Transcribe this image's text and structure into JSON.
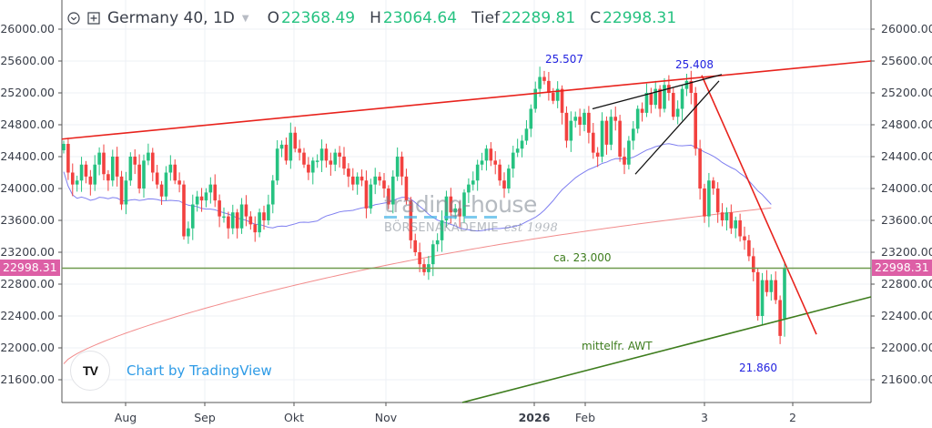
{
  "header": {
    "symbol": "Germany 40, 1D",
    "ohlc": [
      {
        "key": "O",
        "value": "22368.49"
      },
      {
        "key": "H",
        "value": "23064.64"
      },
      {
        "key": "Tief",
        "value": "22289.81"
      },
      {
        "key": "C",
        "value": "22998.31"
      }
    ]
  },
  "current_price_label": "22998.31",
  "watermark": {
    "line1": "trading-house",
    "line2": "BÖRSENAKADEMIE",
    "line3": "est 1998"
  },
  "attribution": {
    "logo": "TV",
    "text": "Chart by TradingView"
  },
  "annotations": {
    "high1": "25.507",
    "high2": "25.408",
    "level": "ca. 23.000",
    "trend": "mittelfr. AWT",
    "low": "21.860"
  },
  "colors": {
    "up": "#26c281",
    "down": "#f2413f",
    "ma50": "#7f7ff0",
    "ma200": "#f28c8c",
    "price_tag": "#dd5fa6",
    "resistance": "#e8231d",
    "support": "#3e7d1e",
    "wedge": "#111111"
  },
  "chart_data": {
    "type": "candlestick",
    "title": "Germany 40, 1D",
    "xlabel": "",
    "ylabel": "",
    "ylim": [
      21400,
      26300
    ],
    "y_ticks": [
      "26000.00",
      "25600.00",
      "25200.00",
      "24800.00",
      "24400.00",
      "24000.00",
      "23600.00",
      "23200.00",
      "22800.00",
      "22400.00",
      "22000.00",
      "21600.00"
    ],
    "x_ticks": [
      {
        "label": "Aug",
        "x": 138
      },
      {
        "label": "Sep",
        "x": 225
      },
      {
        "label": "Okt",
        "x": 323
      },
      {
        "label": "Nov",
        "x": 424
      },
      {
        "label": "2026",
        "x": 587,
        "bold": true
      },
      {
        "label": "Feb",
        "x": 643
      },
      {
        "label": "3",
        "x": 774
      },
      {
        "label": "2",
        "x": 871
      }
    ],
    "last": {
      "open": 22368.49,
      "high": 23064.64,
      "low": 22289.81,
      "close": 22998.31
    },
    "closes": [
      24560,
      24200,
      24050,
      24100,
      24300,
      24150,
      24050,
      24300,
      24450,
      24180,
      24100,
      24400,
      24150,
      23800,
      24100,
      24400,
      24300,
      24000,
      24350,
      24450,
      24200,
      24050,
      23900,
      24200,
      24300,
      24100,
      24050,
      23400,
      23500,
      23800,
      23900,
      23850,
      23950,
      24050,
      23850,
      23650,
      23650,
      23500,
      23700,
      23500,
      23800,
      23650,
      23550,
      23450,
      23700,
      23600,
      23800,
      24100,
      24500,
      24550,
      24350,
      24700,
      24500,
      24450,
      24300,
      24200,
      24350,
      24350,
      24500,
      24350,
      24300,
      24450,
      24400,
      24250,
      24150,
      24050,
      24150,
      24100,
      23750,
      24050,
      24150,
      24100,
      24000,
      23800,
      24150,
      24400,
      24150,
      23850,
      23350,
      23200,
      23050,
      22950,
      23050,
      23300,
      23350,
      23600,
      23900,
      23700,
      23750,
      23650,
      23950,
      24050,
      24100,
      24300,
      24350,
      24500,
      24350,
      24300,
      24100,
      24000,
      24250,
      24450,
      24500,
      24600,
      24750,
      25000,
      25250,
      25400,
      25350,
      25200,
      25100,
      25250,
      24950,
      24600,
      24850,
      24900,
      24800,
      24950,
      24700,
      24450,
      24400,
      24850,
      24550,
      24900,
      24850,
      24400,
      24300,
      24600,
      24750,
      25000,
      24950,
      25200,
      25050,
      25250,
      25000,
      25300,
      25200,
      24900,
      25000,
      25250,
      25350,
      25200,
      24500,
      24000,
      23650,
      24100,
      24000,
      23700,
      23600,
      23700,
      23500,
      23600,
      23400,
      23350,
      23150,
      22950,
      22400,
      22850,
      22700,
      22850,
      22600,
      22150,
      22998
    ],
    "ma50_endpoints": [
      23580,
      23840
    ],
    "ma200_endpoints": [
      21800,
      23740
    ],
    "lines": [
      {
        "name": "resistance",
        "from": [
          0,
          24620
        ],
        "to": [
          200,
          25630
        ]
      },
      {
        "name": "support AWT",
        "from": [
          97,
          21350
        ],
        "to": [
          200,
          22640
        ]
      },
      {
        "name": "downtrend",
        "from": [
          160,
          25400
        ],
        "to": [
          186,
          22170
        ]
      },
      {
        "name": "ca. 23.000",
        "value": 23000
      }
    ]
  }
}
